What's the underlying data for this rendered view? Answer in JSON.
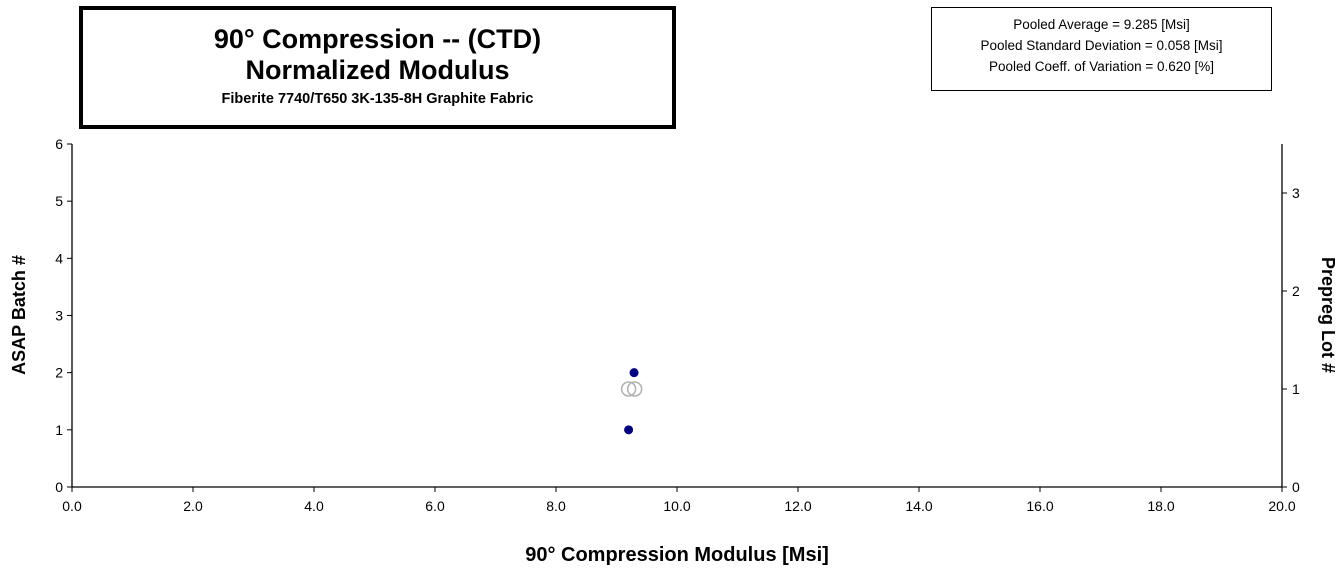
{
  "chart_data": {
    "type": "scatter",
    "title": [
      "90° Compression -- (CTD)",
      "Normalized Modulus"
    ],
    "subtitle": "Fiberite 7740/T650 3K-135-8H Graphite Fabric",
    "xlabel": "90° Compression  Modulus  [Msi]",
    "ylabel_left": "ASAP Batch #",
    "ylabel_right": "Prepreg Lot #",
    "xlim": [
      0,
      20
    ],
    "ylim_left": [
      0,
      6
    ],
    "ylim_right": [
      0,
      3.5
    ],
    "x_ticks": [
      "0.0",
      "2.0",
      "4.0",
      "6.0",
      "8.0",
      "10.0",
      "12.0",
      "14.0",
      "16.0",
      "18.0",
      "20.0"
    ],
    "y_left_ticks": [
      "0",
      "1",
      "2",
      "3",
      "4",
      "5",
      "6"
    ],
    "y_right_ticks": [
      "0",
      "1",
      "2",
      "3"
    ],
    "grid": false,
    "legend": "none",
    "stats": [
      "Pooled Average = 9.285 [Msi]",
      "Pooled Standard Deviation = 0.058  [Msi]",
      "Pooled Coeff. of Variation = 0.620 [%]"
    ],
    "series": [
      {
        "axis": "left",
        "marker": "filled-circle",
        "color": "#000080",
        "points": [
          {
            "x": 9.2,
            "y": 1
          },
          {
            "x": 9.29,
            "y": 2
          }
        ]
      },
      {
        "axis": "right",
        "marker": "open-circle",
        "color": "#b0b0b0",
        "points": [
          {
            "x": 9.2,
            "y": 1.0
          },
          {
            "x": 9.3,
            "y": 1.0
          }
        ]
      }
    ]
  }
}
